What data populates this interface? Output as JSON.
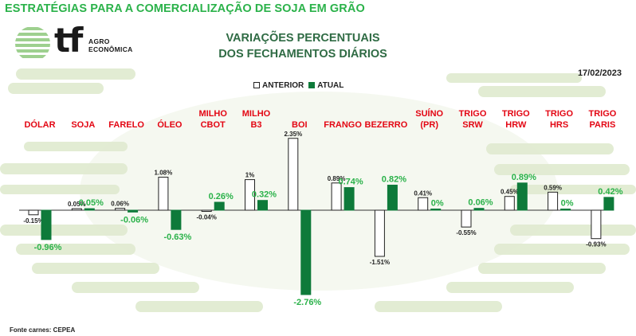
{
  "page_title": "ESTRATÉGIAS PARA A COMERCIALIZAÇÃO DE SOJA EM GRÃO",
  "logo": {
    "mark": "tf",
    "line1": "AGRO",
    "line2": "ECONÔMICA"
  },
  "chart_title_line1": "VARIAÇÕES PERCENTUAIS",
  "chart_title_line2": "DOS FECHAMENTOS DIÁRIOS",
  "date": "17/02/2023",
  "source": "Fonte carnes: CEPEA",
  "colors": {
    "title_green": "#2bb24a",
    "bar_green": "#0e7a3a",
    "label_red": "#e30613",
    "value_green": "#2bb24a",
    "background_band": "#e2ecd3"
  },
  "chart_data": {
    "type": "bar",
    "title": "VARIAÇÕES PERCENTUAIS DOS FECHAMENTOS DIÁRIOS",
    "categories": [
      [
        "DÓLAR"
      ],
      [
        "SOJA"
      ],
      [
        "FARELO"
      ],
      [
        "ÓLEO"
      ],
      [
        "MILHO",
        "CBOT"
      ],
      [
        "MILHO",
        "B3"
      ],
      [
        "BOI"
      ],
      [
        "FRANGO"
      ],
      [
        "BEZERRO"
      ],
      [
        "SUÍNO",
        "(PR)"
      ],
      [
        "TRIGO",
        "SRW"
      ],
      [
        "TRIGO",
        "HRW"
      ],
      [
        "TRIGO",
        "HRS"
      ],
      [
        "TRIGO",
        "PARIS"
      ]
    ],
    "series": [
      {
        "name": "ANTERIOR",
        "values": [
          -0.15,
          0.05,
          0.06,
          1.08,
          -0.04,
          1.0,
          2.35,
          0.89,
          -1.51,
          0.41,
          -0.55,
          0.45,
          0.59,
          -0.93
        ],
        "labels": [
          "-0.15%",
          "0.05%",
          "0.06%",
          "1.08%",
          "-0.04%",
          "1%",
          "2.35%",
          "0.89%",
          "-1.51%",
          "0.41%",
          "-0.55%",
          "0.45%",
          "0.59%",
          "-0.93%"
        ]
      },
      {
        "name": "ATUAL",
        "values": [
          -0.96,
          0.05,
          -0.06,
          -0.63,
          0.26,
          0.32,
          -2.76,
          0.74,
          0.82,
          0,
          0.06,
          0.89,
          0,
          0.42
        ],
        "labels": [
          "-0.96%",
          "0.05%",
          "-0.06%",
          "-0.63%",
          "0.26%",
          "0.32%",
          "-2.76%",
          "0.74%",
          "0.82%",
          "0%",
          "0.06%",
          "0.89%",
          "0%",
          "0.42%"
        ]
      }
    ],
    "legend_position": "top-center",
    "grid": false
  }
}
